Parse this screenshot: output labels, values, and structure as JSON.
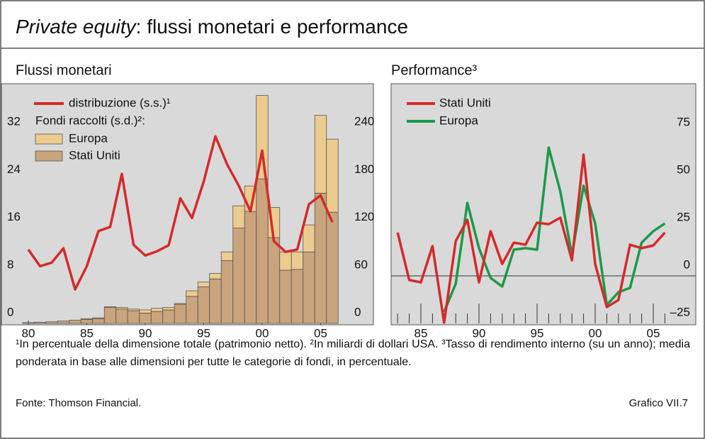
{
  "title_italic": "Private equity",
  "title": ": flussi monetari e performance",
  "chart_data": [
    {
      "type": "bar_line",
      "title": "Flussi monetari",
      "x": [
        1980,
        1981,
        1982,
        1983,
        1984,
        1985,
        1986,
        1987,
        1988,
        1989,
        1990,
        1991,
        1992,
        1993,
        1994,
        1995,
        1996,
        1997,
        1998,
        1999,
        2000,
        2001,
        2002,
        2003,
        2004,
        2005,
        2006
      ],
      "xticks": [
        {
          "value": 1980,
          "label": "80"
        },
        {
          "value": 1985,
          "label": "85"
        },
        {
          "value": 1990,
          "label": "90"
        },
        {
          "value": 1995,
          "label": "95"
        },
        {
          "value": 2000,
          "label": "00"
        },
        {
          "value": 2005,
          "label": "05"
        }
      ],
      "ylim": [
        0,
        40
      ],
      "yticks": [
        0,
        8,
        16,
        24,
        32
      ],
      "y2lim": [
        0,
        300
      ],
      "y2ticks": [
        0,
        60,
        120,
        180,
        240
      ],
      "legend_text": "Fondi raccolti (s.d.)²:",
      "series": [
        {
          "name": "distribuzione (s.s.)¹",
          "kind": "line",
          "color": "#d42a2a",
          "values": [
            12.4,
            9.6,
            10.2,
            12.6,
            5.7,
            9.6,
            15.5,
            16.2,
            25.1,
            13.2,
            11.4,
            12.1,
            13.1,
            21.0,
            17.7,
            23.8,
            31.4,
            26.7,
            23.1,
            18.8,
            29.0,
            13.8,
            12.0,
            12.4,
            20.0,
            21.5,
            17.0
          ]
        },
        {
          "name": "Stati Uniti",
          "kind": "bar",
          "axis": "y2",
          "color": "#c9a47c",
          "values": [
            1,
            1.5,
            2,
            3,
            4,
            5,
            6,
            20,
            18,
            16,
            13,
            15,
            17,
            24,
            34,
            46,
            56,
            79,
            120,
            141,
            182,
            108,
            67,
            68,
            90,
            164,
            140
          ]
        },
        {
          "name": "Europa",
          "kind": "bar",
          "axis": "y2",
          "color": "#eccb8e",
          "values": [
            0,
            0,
            0,
            0,
            0,
            1,
            1,
            1,
            2,
            2,
            4,
            4,
            3,
            1,
            7,
            6,
            7,
            11,
            28,
            32,
            105,
            38,
            23,
            22,
            34,
            98,
            92
          ]
        }
      ]
    },
    {
      "type": "line",
      "title": "Performance³",
      "x": [
        1983,
        1984,
        1985,
        1986,
        1987,
        1988,
        1989,
        1990,
        1991,
        1992,
        1993,
        1994,
        1995,
        1996,
        1997,
        1998,
        1999,
        2000,
        2001,
        2002,
        2003,
        2004,
        2005,
        2006
      ],
      "xticks": [
        {
          "value": 1985,
          "label": "85"
        },
        {
          "value": 1990,
          "label": "90"
        },
        {
          "value": 1995,
          "label": "95"
        },
        {
          "value": 2000,
          "label": "00"
        },
        {
          "value": 2005,
          "label": "05"
        }
      ],
      "ylim": [
        -25,
        100
      ],
      "yticks": [
        {
          "value": -25,
          "label": "–25"
        },
        0,
        25,
        50,
        75
      ],
      "series": [
        {
          "name": "Stati Uniti",
          "color": "#d42a2a",
          "values": [
            22.8,
            -2.2,
            -3.4,
            15.7,
            -24.6,
            18.3,
            29.5,
            -3.4,
            23.5,
            6.3,
            17.5,
            16.4,
            28,
            27.2,
            30.6,
            8.2,
            63.8,
            6.3,
            -16.4,
            -12.7,
            16.4,
            14.6,
            16,
            22.8
          ]
        },
        {
          "name": "Europa",
          "color": "#1a9a48",
          "values": [
            null,
            null,
            null,
            null,
            -19,
            -4.1,
            38.4,
            14.6,
            -1.1,
            -5.6,
            13.8,
            14.6,
            13.8,
            67.5,
            44.4,
            10.8,
            47.4,
            27.6,
            -15.3,
            -8.6,
            -6.3,
            17.5,
            23.5,
            27.6
          ]
        }
      ]
    }
  ],
  "notes": "¹In percentuale della dimensione totale (patrimonio netto).   ²In miliardi di dollari USA.   ³Tasso di rendimento interno (su un anno); media ponderata in base alle dimensioni per tutte le categorie di fondi, in percentuale.",
  "source": "Fonte: Thomson Financial.",
  "chart_number": "Grafico VII.7"
}
